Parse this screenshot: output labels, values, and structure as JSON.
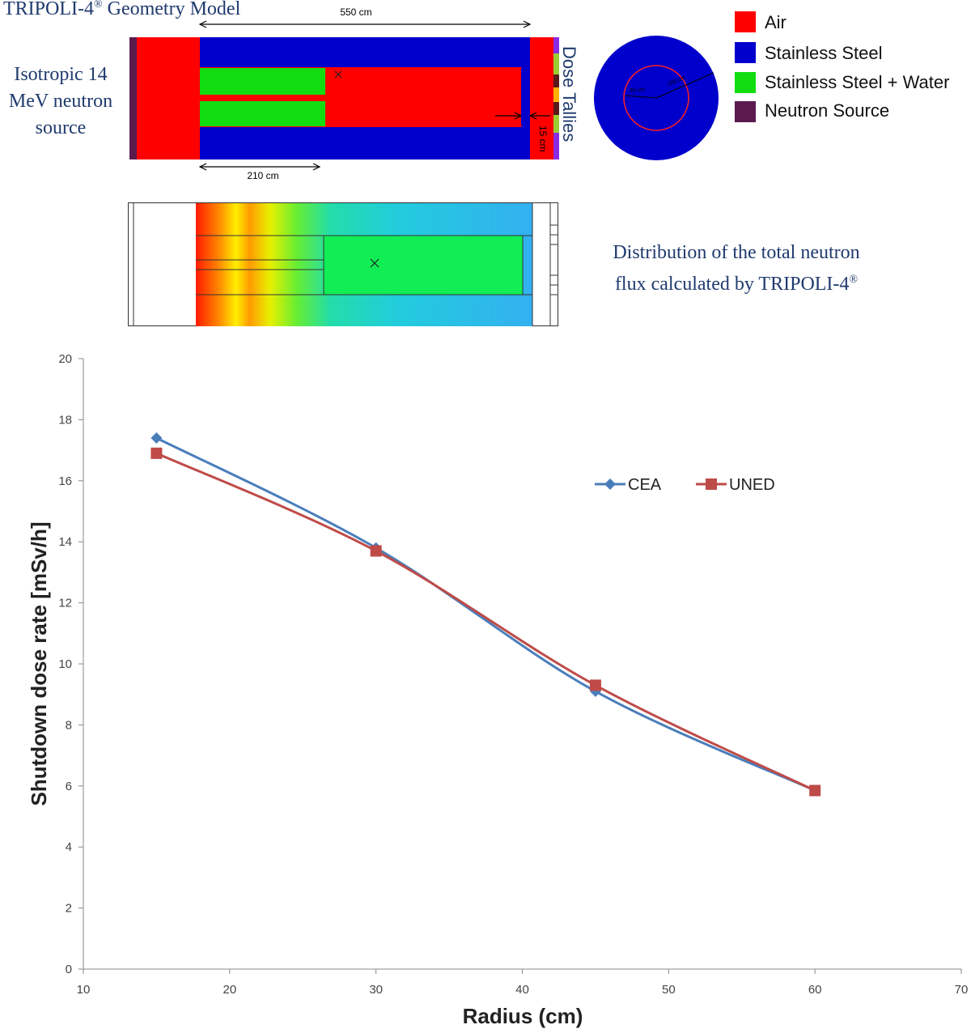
{
  "geometry": {
    "title": "TRIPOLI-4",
    "title_sup": "®",
    "title_rest": " Geometry Model",
    "source_label_lines": [
      "Isotropic 14",
      "MeV neutron",
      "source"
    ],
    "dim_length": "550 cm",
    "dim_length_2": "210 cm",
    "dim_gap": "15 cm",
    "dose_tallies": "Dose Tallies",
    "circle_r1": "30 cm",
    "circle_r2": "100 cm"
  },
  "material_legend": [
    {
      "label": "Air",
      "color": "#ff0000"
    },
    {
      "label": "Stainless Steel",
      "color": "#0000cc"
    },
    {
      "label": "Stainless Steel + Water",
      "color": "#11dd11"
    },
    {
      "label": "Neutron Source",
      "color": "#5a1a4e"
    }
  ],
  "flux_caption": {
    "line1": "Distribution of the total neutron",
    "line2": "flux calculated by TRIPOLI-4",
    "sup": "®"
  },
  "chart_data": {
    "type": "line",
    "xlabel": "Radius (cm)",
    "ylabel": "Shutdown dose rate  [mSv/h]",
    "xlim": [
      10,
      70
    ],
    "ylim": [
      0,
      20
    ],
    "xticks": [
      10,
      20,
      30,
      40,
      50,
      60,
      70
    ],
    "yticks": [
      0,
      2,
      4,
      6,
      8,
      10,
      12,
      14,
      16,
      18,
      20
    ],
    "grid": false,
    "legend_position": "top-right",
    "series": [
      {
        "name": "CEA",
        "color": "#4a7ebb",
        "marker": "diamond",
        "x": [
          15,
          30,
          45,
          60
        ],
        "y": [
          17.4,
          13.8,
          9.1,
          5.85
        ]
      },
      {
        "name": "UNED",
        "color": "#be4b48",
        "marker": "square",
        "x": [
          15,
          30,
          45,
          60
        ],
        "y": [
          16.9,
          13.7,
          9.3,
          5.85
        ]
      }
    ]
  }
}
